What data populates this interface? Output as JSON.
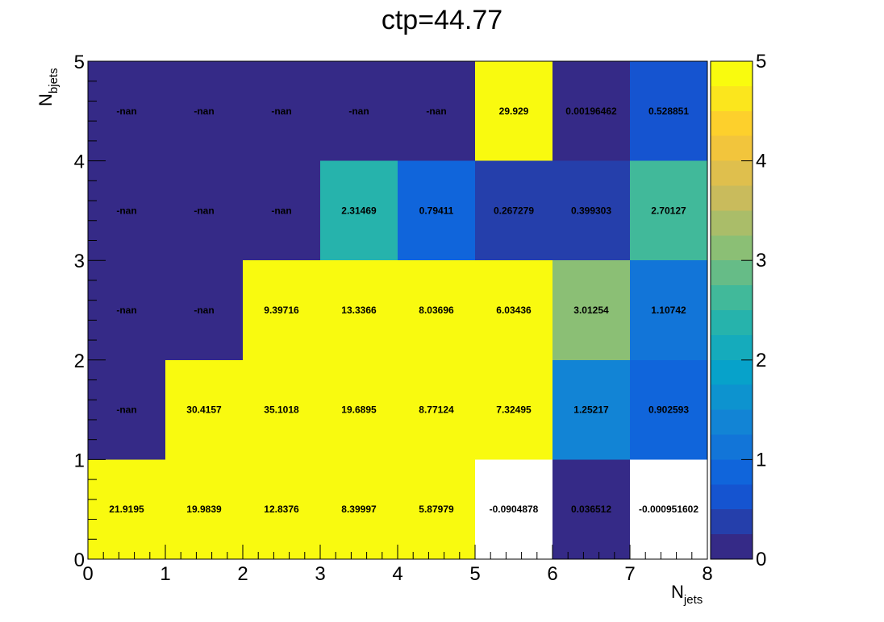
{
  "chart_data": {
    "type": "heatmap",
    "title": "ctp=44.77",
    "xlabel": {
      "main": "N",
      "sub": "jets"
    },
    "ylabel": {
      "main": "N",
      "sub": "bjets"
    },
    "xlim": [
      0,
      8
    ],
    "ylim": [
      0,
      5
    ],
    "x_ticks": [
      "0",
      "1",
      "2",
      "3",
      "4",
      "5",
      "6",
      "7",
      "8"
    ],
    "y_ticks": [
      "0",
      "1",
      "2",
      "3",
      "4",
      "5"
    ],
    "color_scale": {
      "zlim": [
        0,
        5
      ],
      "ticks": [
        "0",
        "1",
        "2",
        "3",
        "4",
        "5"
      ],
      "palette": "kBird",
      "levels": 20,
      "overflow_color": "#f9fa0f",
      "underflow_color": "#ffffff"
    },
    "rows": [
      {
        "y_bin": "0-1",
        "labels": [
          "21.9195",
          "19.9839",
          "12.8376",
          "8.39997",
          "5.87979",
          "-0.0904878",
          "0.036512",
          "-0.000951602"
        ],
        "values": [
          21.9195,
          19.9839,
          12.8376,
          8.39997,
          5.87979,
          -0.0904878,
          0.036512,
          -0.000951602
        ]
      },
      {
        "y_bin": "1-2",
        "labels": [
          "-nan",
          "30.4157",
          "35.1018",
          "19.6895",
          "8.77124",
          "7.32495",
          "1.25217",
          "0.902593"
        ],
        "values": [
          null,
          30.4157,
          35.1018,
          19.6895,
          8.77124,
          7.32495,
          1.25217,
          0.902593
        ]
      },
      {
        "y_bin": "2-3",
        "labels": [
          "-nan",
          "-nan",
          "9.39716",
          "13.3366",
          "8.03696",
          "6.03436",
          "3.01254",
          "1.10742"
        ],
        "values": [
          null,
          null,
          9.39716,
          13.3366,
          8.03696,
          6.03436,
          3.01254,
          1.10742
        ]
      },
      {
        "y_bin": "3-4",
        "labels": [
          "-nan",
          "-nan",
          "-nan",
          "2.31469",
          "0.79411",
          "0.267279",
          "0.399303",
          "2.70127"
        ],
        "values": [
          null,
          null,
          null,
          2.31469,
          0.79411,
          0.267279,
          0.399303,
          2.70127
        ]
      },
      {
        "y_bin": "4-5",
        "labels": [
          "-nan",
          "-nan",
          "-nan",
          "-nan",
          "-nan",
          "29.929",
          "0.00196462",
          "0.528851"
        ],
        "values": [
          null,
          null,
          null,
          null,
          null,
          29.929,
          0.00196462,
          0.528851
        ]
      }
    ]
  }
}
